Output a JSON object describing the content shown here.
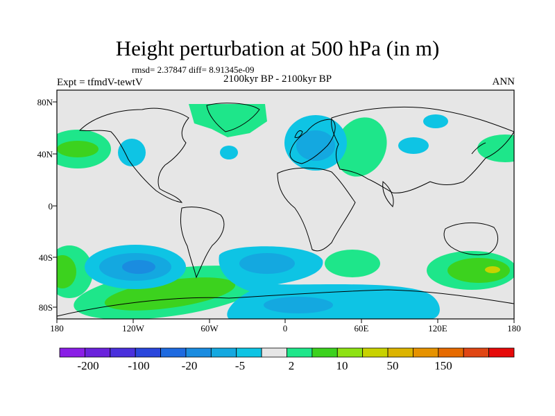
{
  "title": "Height perturbation at 500 hPa (in m)",
  "stats": "rmsd= 2.37847 diff= 8.91345e-09",
  "left_label": "Expt = tfmdV-tewtV",
  "center_label": "2100kyr BP - 2100kyr BP",
  "right_label": "ANN",
  "lat_ticks": [
    "80N",
    "40N",
    "0",
    "40S",
    "80S"
  ],
  "lon_ticks": [
    "180",
    "120W",
    "60W",
    "0",
    "60E",
    "120E",
    "180"
  ],
  "colorbar": {
    "colors": [
      "#8a1ee6",
      "#6a22dc",
      "#4a30dc",
      "#2a46dc",
      "#1e6ae0",
      "#1a8ce0",
      "#14a8e0",
      "#0ec4e4",
      "#e6e6e6",
      "#1ee68a",
      "#3cd21e",
      "#8ee214",
      "#c8d200",
      "#dcb400",
      "#e69200",
      "#e66a00",
      "#e04614",
      "#e60a0a"
    ],
    "labels": [
      "-200",
      "-100",
      "-20",
      "-5",
      "2",
      "10",
      "50",
      "150"
    ]
  },
  "colors": {
    "background": "#e6e6e6",
    "pos_light": "#1ee68a",
    "pos_mid": "#3cd21e",
    "pos_high": "#8ee214",
    "pos_peak": "#c8d200",
    "neg_light": "#0ec4e4",
    "neg_mid": "#14a8e0",
    "neg_deep": "#1a8ce0"
  }
}
